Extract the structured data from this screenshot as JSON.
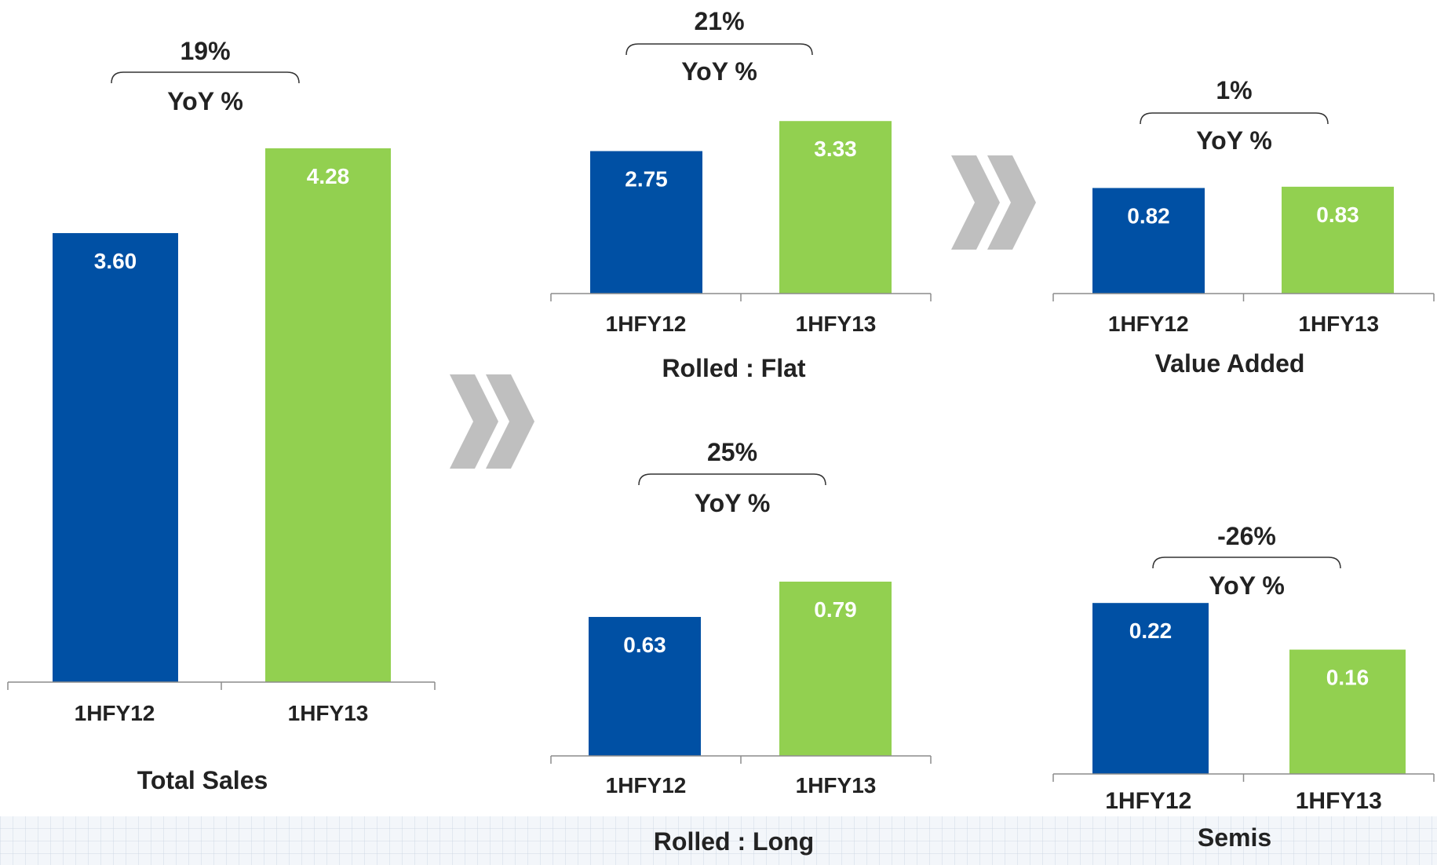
{
  "colors": {
    "series_1": "#0050a4",
    "series_2": "#92d050",
    "axis": "#8c8c8c",
    "chevron": "#bfbfbf",
    "text": "#222222"
  },
  "icons": {
    "arrow": "double-chevron-right-icon"
  },
  "chart_data": [
    {
      "type": "bar",
      "title": "Total Sales",
      "categories": [
        "1HFY12",
        "1HFY13"
      ],
      "values": [
        3.6,
        4.28
      ],
      "value_labels": [
        "3.60",
        "4.28"
      ],
      "yoy_label": "YoY %",
      "yoy_value": "19%"
    },
    {
      "type": "bar",
      "title": "Rolled : Flat",
      "categories": [
        "1HFY12",
        "1HFY13"
      ],
      "values": [
        2.75,
        3.33
      ],
      "value_labels": [
        "2.75",
        "3.33"
      ],
      "yoy_label": "YoY %",
      "yoy_value": "21%"
    },
    {
      "type": "bar",
      "title": "Rolled : Long",
      "categories": [
        "1HFY12",
        "1HFY13"
      ],
      "values": [
        0.63,
        0.79
      ],
      "value_labels": [
        "0.63",
        "0.79"
      ],
      "yoy_label": "YoY %",
      "yoy_value": "25%"
    },
    {
      "type": "bar",
      "title": "Value Added",
      "categories": [
        "1HFY12",
        "1HFY13"
      ],
      "values": [
        0.82,
        0.83
      ],
      "value_labels": [
        "0.82",
        "0.83"
      ],
      "yoy_label": "YoY %",
      "yoy_value": "1%"
    },
    {
      "type": "bar",
      "title": "Semis",
      "categories": [
        "1HFY12",
        "1HFY13"
      ],
      "values": [
        0.22,
        0.16
      ],
      "value_labels": [
        "0.22",
        "0.16"
      ],
      "yoy_label": "YoY %",
      "yoy_value": "-26%"
    }
  ]
}
